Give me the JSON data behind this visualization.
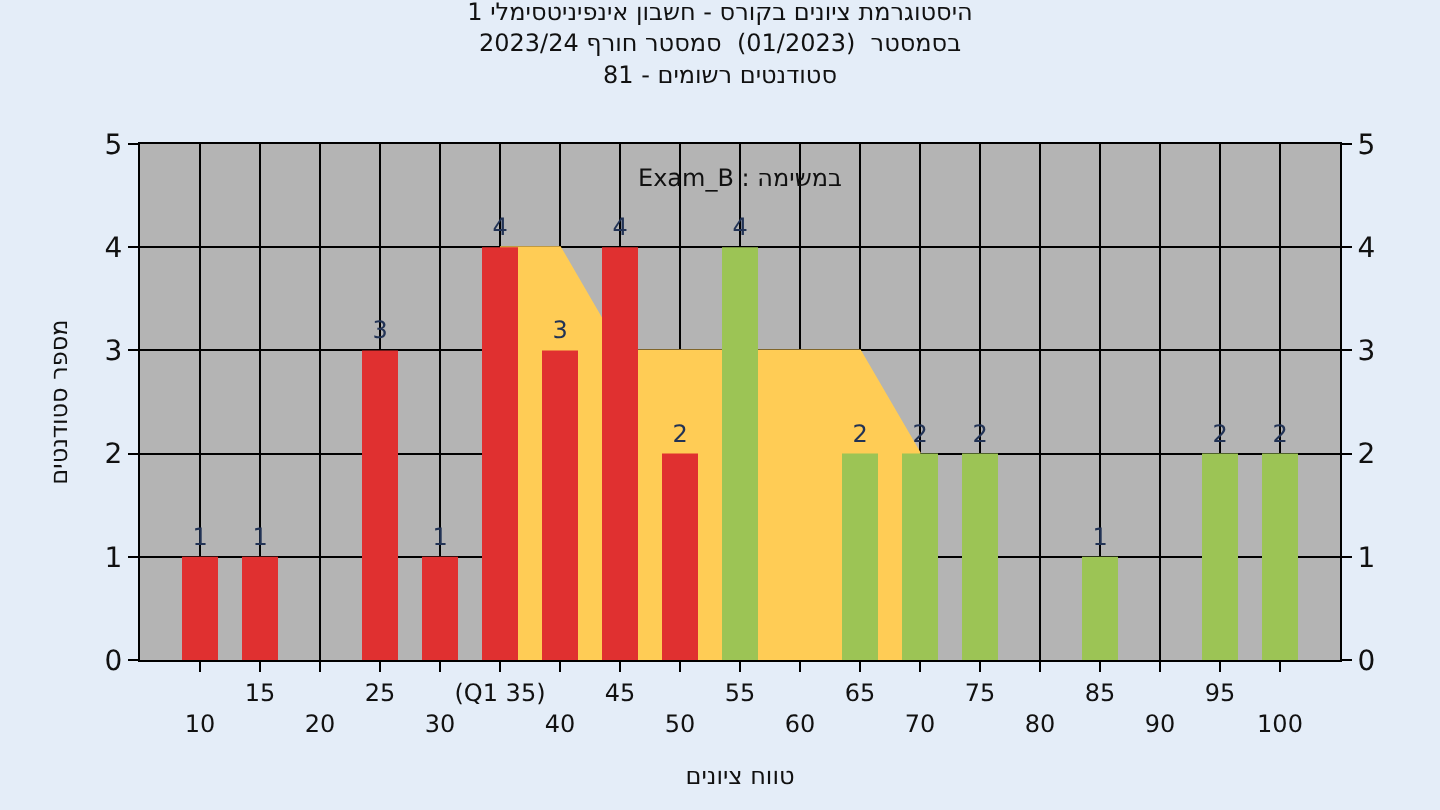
{
  "chart_data": {
    "type": "bar",
    "title": "היסטוגרמת ציונים בקורס - חשבון אינפיניטסימלי 1",
    "subtitle": "בסמסטר  (01/2023)  סמסטר חורף 2023/24\nסטודנטים רשומים - 81",
    "xlabel": "טווח ציונים",
    "ylabel": "מספר סטודנטים",
    "annotations": [
      "Exam_B : במשימה"
    ],
    "categories": [
      "10",
      "15",
      "20",
      "25",
      "30",
      "(Q1 35)",
      "40",
      "45",
      "50",
      "55",
      "60",
      "65",
      "70",
      "75",
      "80",
      "85",
      "90",
      "95",
      "100"
    ],
    "series": [
      {
        "type": "area",
        "color": "#ffcc55",
        "values": [
          null,
          null,
          null,
          null,
          null,
          4,
          4,
          3,
          3,
          3,
          3,
          3,
          2,
          null,
          null,
          null,
          null,
          null,
          null
        ]
      },
      {
        "colors": [
          "#e03030",
          "#e03030",
          "#e03030",
          "#e03030",
          "#e03030",
          "#e03030",
          "#e03030",
          "#e03030",
          "#e03030",
          "#9cc455",
          "#9cc455",
          "#9cc455",
          "#9cc455",
          "#9cc455",
          "#9cc455",
          "#9cc455",
          "#9cc455",
          "#9cc455",
          "#9cc455"
        ],
        "values": [
          1,
          1,
          0,
          3,
          1,
          4,
          3,
          4,
          2,
          4,
          0,
          2,
          2,
          2,
          0,
          1,
          0,
          2,
          2
        ],
        "value_labels": [
          "1",
          "1",
          null,
          "3",
          "1",
          "4",
          "3",
          "4",
          "2",
          "4",
          null,
          "2",
          "2",
          "2",
          null,
          "1",
          null,
          "2",
          "2"
        ]
      }
    ],
    "ylim": [
      0,
      5
    ],
    "yticks": [
      0,
      1,
      2,
      3,
      4,
      5
    ],
    "y2lim": [
      0,
      5
    ],
    "y2ticks": [
      0,
      1,
      2,
      3,
      4,
      5
    ],
    "grid": true
  }
}
